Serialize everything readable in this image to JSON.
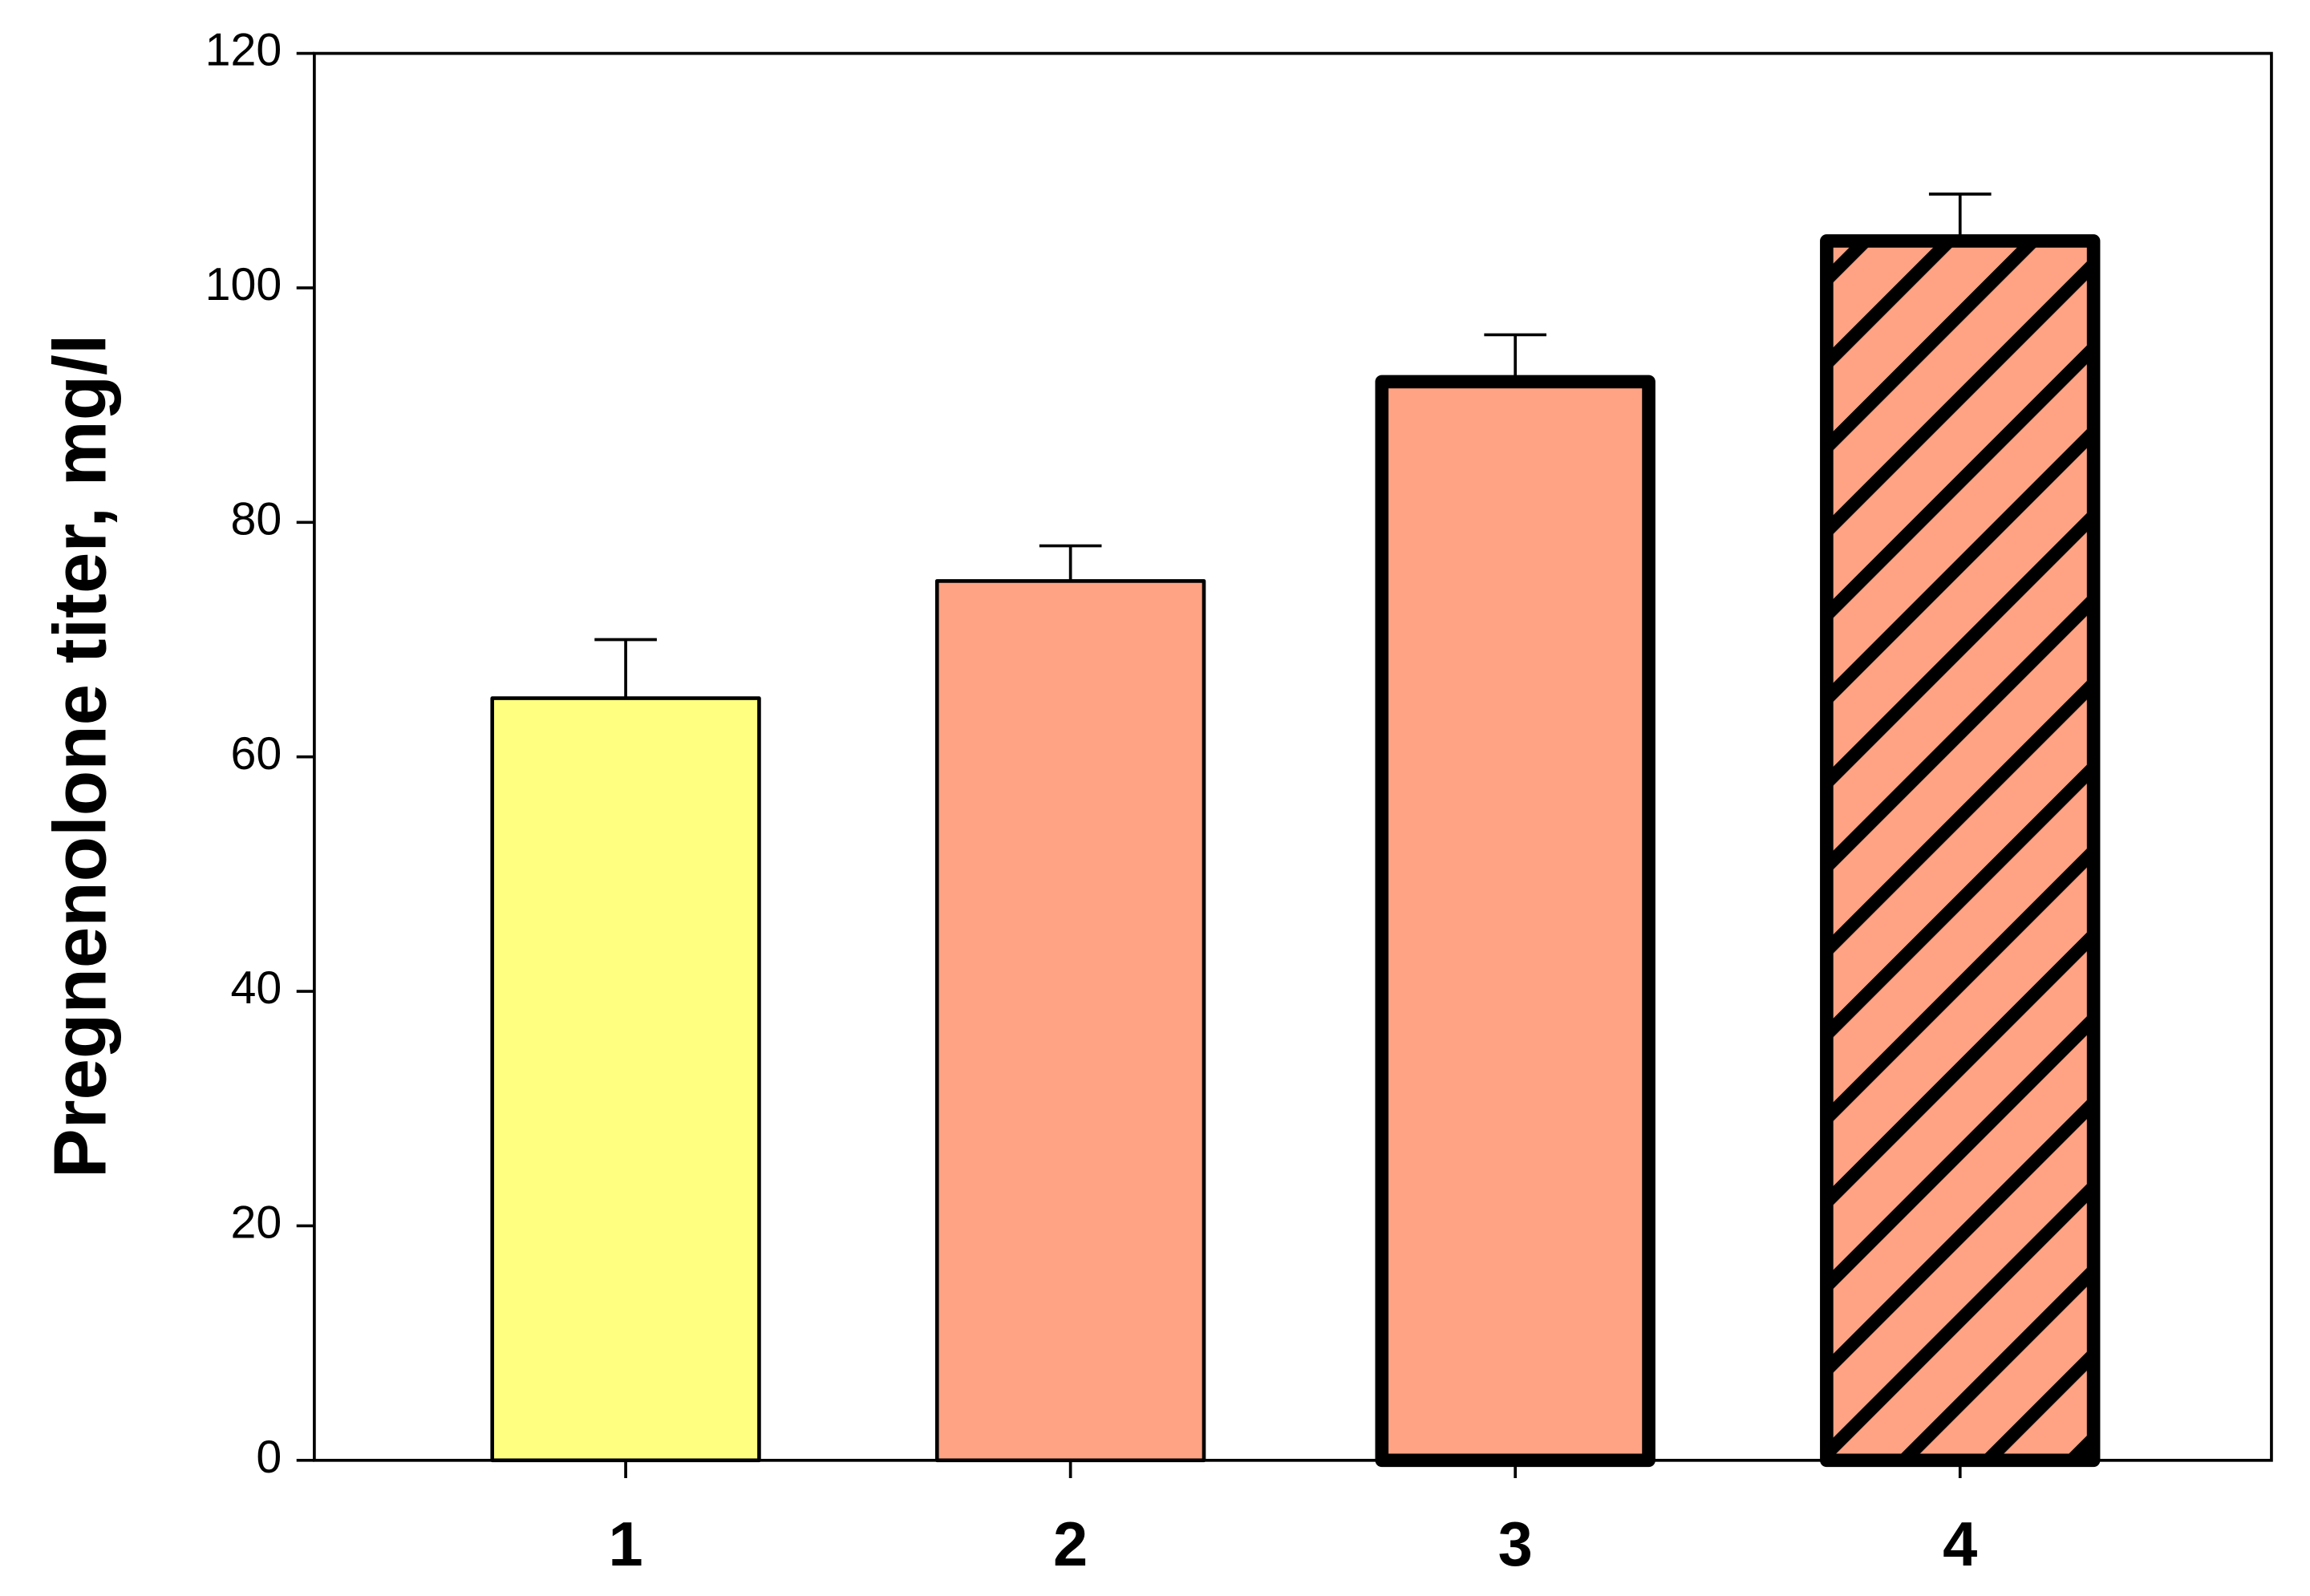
{
  "chart_data": {
    "type": "bar",
    "ylabel": "Pregnenolone titer, mg/l",
    "categories": [
      "1",
      "2",
      "3",
      "4"
    ],
    "values": [
      65,
      75,
      92,
      104
    ],
    "errors": [
      5,
      3,
      4,
      4
    ],
    "colors": [
      "#ffff80",
      "#ffa384",
      "#ffa384",
      "#ffa384"
    ],
    "edge_style": [
      "thin",
      "thin",
      "thick",
      "thick"
    ],
    "hatch": [
      null,
      null,
      null,
      "diagonal"
    ],
    "ylim": [
      0,
      120
    ],
    "yticks": [
      0,
      20,
      40,
      60,
      80,
      100,
      120
    ],
    "grid": false
  }
}
